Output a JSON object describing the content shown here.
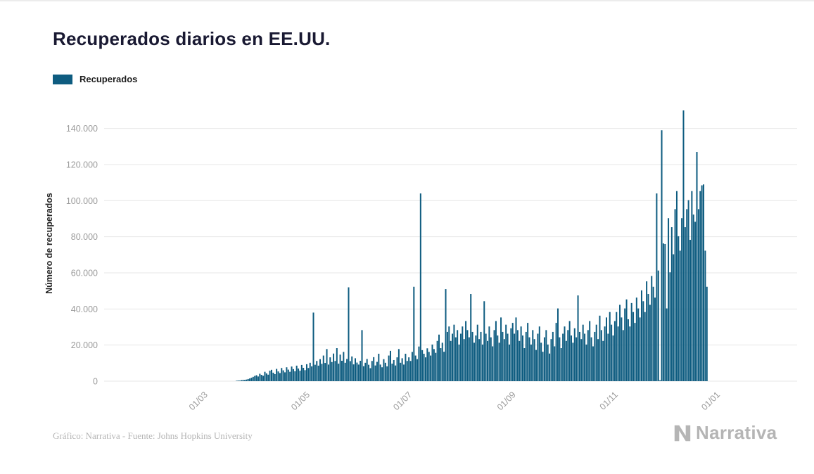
{
  "legend": {
    "label": "Recuperados"
  },
  "footer": {
    "credit": "Gráfico: Narrativa - Fuente: Johns Hopkins University",
    "brand": "Narrativa"
  },
  "chart_data": {
    "type": "bar",
    "title": "Recuperados diarios en EE.UU.",
    "ylabel": "Número de recuperados",
    "xlabel": "",
    "series_name": "Recuperados",
    "bar_color": "#0e5c80",
    "grid_color": "#e7e7e7",
    "ylim": [
      0,
      150000
    ],
    "y_ticks": [
      {
        "value": 0,
        "label": "0"
      },
      {
        "value": 20000,
        "label": "20.000"
      },
      {
        "value": 40000,
        "label": "40.000"
      },
      {
        "value": 60000,
        "label": "60.000"
      },
      {
        "value": 80000,
        "label": "80.000"
      },
      {
        "value": 100000,
        "label": "100.000"
      },
      {
        "value": 120000,
        "label": "120.000"
      },
      {
        "value": 140000,
        "label": "140.000"
      }
    ],
    "x_ticks": [
      {
        "date": "2020-03-01",
        "label": "01/03"
      },
      {
        "date": "2020-05-01",
        "label": "01/05"
      },
      {
        "date": "2020-07-01",
        "label": "01/07"
      },
      {
        "date": "2020-09-01",
        "label": "01/09"
      },
      {
        "date": "2020-11-01",
        "label": "01/11"
      },
      {
        "date": "2021-01-01",
        "label": "01/01"
      }
    ],
    "x_domain_start": "2020-01-01",
    "start_date": "2020-03-20",
    "values": [
      200,
      350,
      300,
      550,
      700,
      650,
      900,
      1200,
      1500,
      1900,
      2400,
      2900,
      3300,
      2600,
      4100,
      3500,
      3000,
      5200,
      4300,
      3600,
      5800,
      6300,
      4700,
      3900,
      6800,
      5400,
      4500,
      7300,
      6000,
      4900,
      7700,
      6400,
      5200,
      8100,
      6700,
      5500,
      8600,
      7000,
      5800,
      9000,
      7400,
      6100,
      9400,
      7300,
      10200,
      8200,
      38000,
      9100,
      11200,
      8600,
      12200,
      9600,
      14200,
      10100,
      17800,
      9200,
      13200,
      10600,
      15300,
      11200,
      18300,
      9700,
      14700,
      11300,
      16200,
      10200,
      12300,
      52000,
      11100,
      13700,
      9300,
      12700,
      10300,
      9200,
      11300,
      28300,
      8300,
      10200,
      12300,
      9100,
      7200,
      11200,
      13300,
      8700,
      10700,
      15200,
      9200,
      7700,
      12200,
      10200,
      8200,
      14200,
      16800,
      9700,
      11700,
      8700,
      13200,
      17800,
      10200,
      12700,
      9200,
      15200,
      11200,
      13200,
      11200,
      16200,
      52300,
      14200,
      12200,
      19200,
      104000,
      17200,
      15200,
      13200,
      18200,
      16200,
      14200,
      20300,
      17800,
      15700,
      22300,
      25800,
      18300,
      21300,
      16300,
      51000,
      27300,
      30300,
      22300,
      26300,
      31300,
      24300,
      28300,
      20300,
      26300,
      30300,
      23300,
      33300,
      28300,
      24300,
      48300,
      27300,
      21300,
      25300,
      31300,
      23300,
      27300,
      20300,
      44300,
      26300,
      22300,
      30300,
      24300,
      19300,
      28300,
      33300,
      25300,
      21300,
      35300,
      27300,
      23300,
      31300,
      26300,
      20300,
      29300,
      32300,
      26300,
      35300,
      28300,
      22300,
      30300,
      25300,
      18300,
      27300,
      32300,
      24300,
      20300,
      28300,
      23300,
      17300,
      26300,
      30300,
      21300,
      16300,
      24300,
      28300,
      20300,
      15300,
      23300,
      27300,
      19300,
      32300,
      40300,
      24300,
      18300,
      26300,
      30300,
      22300,
      28300,
      33300,
      25300,
      21300,
      29300,
      24300,
      47500,
      27300,
      23300,
      31300,
      26300,
      20300,
      28300,
      33300,
      24300,
      19300,
      27300,
      31300,
      23300,
      36300,
      28300,
      22300,
      30300,
      35300,
      26300,
      38300,
      31300,
      25300,
      33300,
      38300,
      30300,
      42300,
      35300,
      28300,
      40300,
      45300,
      34300,
      30300,
      43300,
      38300,
      32300,
      46300,
      40300,
      35300,
      50300,
      44300,
      38300,
      55300,
      48300,
      42300,
      58300,
      52300,
      46300,
      104000,
      61300,
      500,
      139000,
      76300,
      76000,
      40300,
      90300,
      60300,
      85300,
      70300,
      95300,
      105300,
      80300,
      72300,
      90300,
      150000,
      85300,
      95300,
      100300,
      78300,
      105300,
      92300,
      88300,
      127000,
      95300,
      105300,
      108500,
      109000,
      72300,
      52300
    ]
  }
}
